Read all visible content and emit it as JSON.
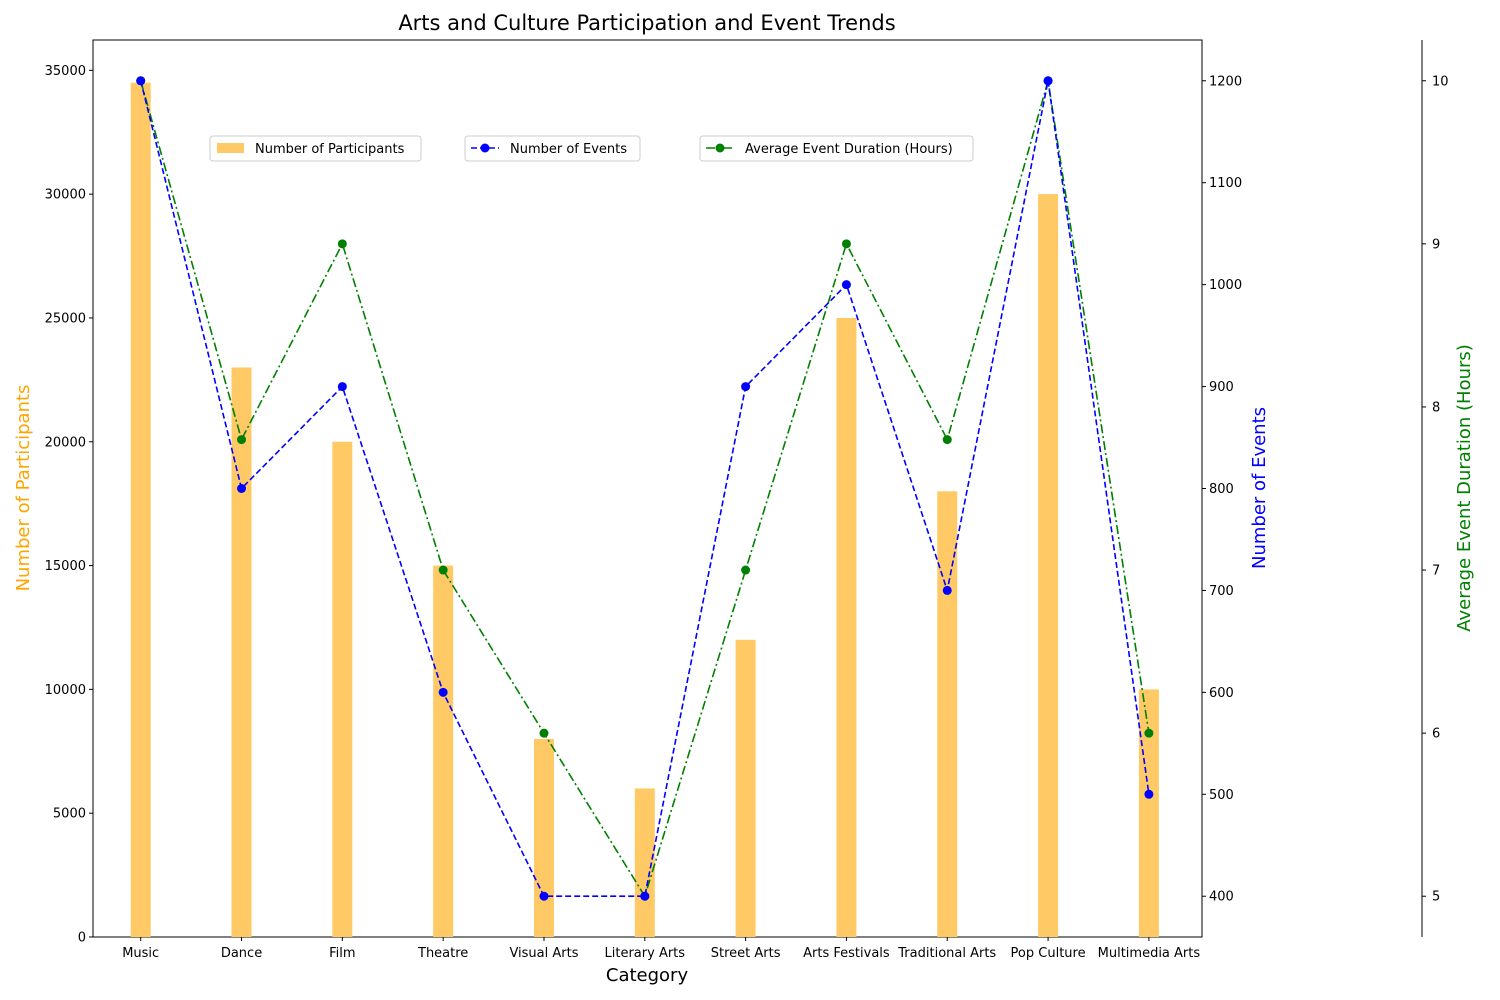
{
  "chart_data": {
    "type": "bar+line",
    "title": "Arts and Culture Participation and Event Trends",
    "xlabel": "Category",
    "categories": [
      "Music",
      "Dance",
      "Film",
      "Theatre",
      "Visual Arts",
      "Literary Arts",
      "Street Arts",
      "Arts Festivals",
      "Traditional Arts",
      "Pop Culture",
      "Multimedia Arts"
    ],
    "series": [
      {
        "name": "Number of Participants",
        "kind": "bar",
        "axis": "left",
        "color": "#FFC966",
        "values": [
          34500,
          23000,
          20000,
          15000,
          8000,
          6000,
          12000,
          25000,
          18000,
          30000,
          10000
        ]
      },
      {
        "name": "Number of Events",
        "kind": "line",
        "linestyle": "dashed",
        "marker": "circle",
        "axis": "right",
        "color": "#0000FF",
        "values": [
          1200,
          800,
          900,
          600,
          400,
          400,
          900,
          1000,
          700,
          1200,
          500
        ]
      },
      {
        "name": "Average Event Duration (Hours)",
        "kind": "line",
        "linestyle": "dashdot",
        "marker": "circle",
        "axis": "far-right",
        "color": "#008000",
        "values": [
          10,
          7.8,
          9,
          7,
          6,
          5,
          7,
          9,
          7.8,
          10,
          6
        ]
      }
    ],
    "axes": {
      "left": {
        "label": "Number of Participants",
        "color": "#FFA500",
        "ylim": [
          0,
          36225
        ],
        "ticks": [
          0,
          5000,
          10000,
          15000,
          20000,
          25000,
          30000,
          35000
        ]
      },
      "right": {
        "label": "Number of Events",
        "color": "#0000FF",
        "ylim": [
          360,
          1240
        ],
        "ticks": [
          400,
          500,
          600,
          700,
          800,
          900,
          1000,
          1100,
          1200
        ]
      },
      "far_right": {
        "label": "Average Event Duration (Hours)",
        "color": "#008000",
        "ylim": [
          4.75,
          10.25
        ],
        "ticks": [
          5,
          6,
          7,
          8,
          9,
          10
        ]
      }
    },
    "legend": [
      "Number of Participants",
      "Number of Events",
      "Average Event Duration (Hours)"
    ],
    "legend_placement": "upper, in a row",
    "grid": false
  }
}
